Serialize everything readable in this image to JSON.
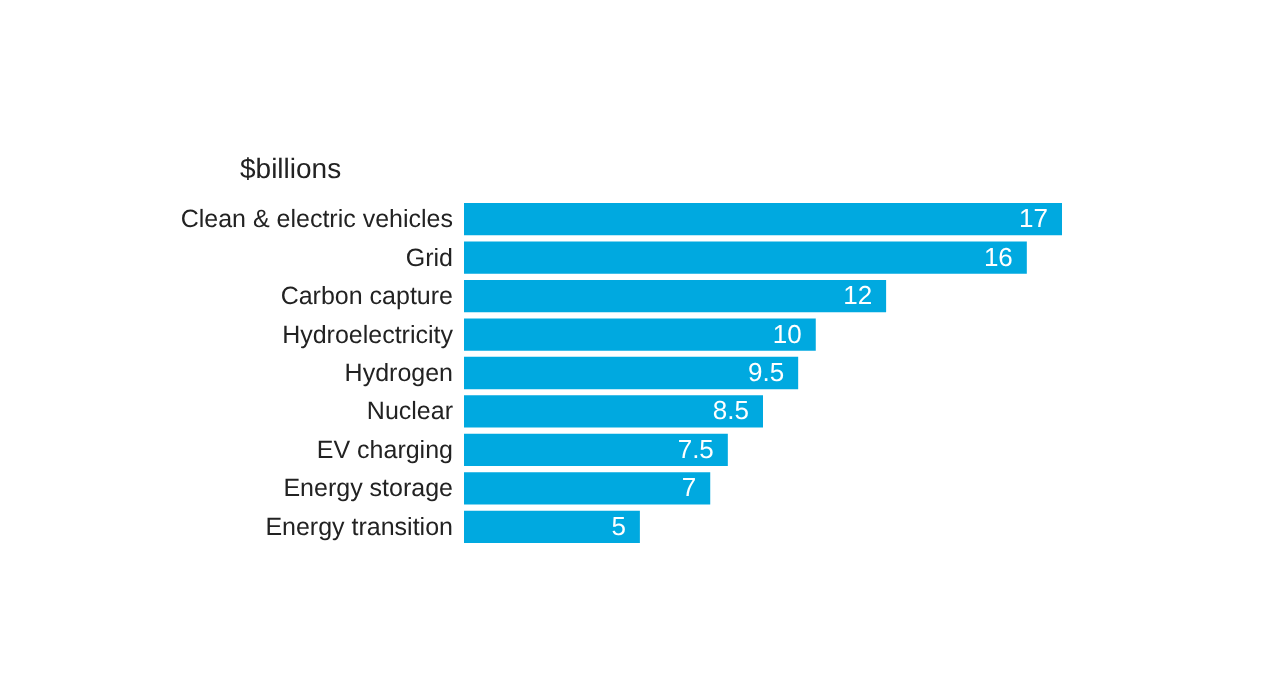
{
  "chart_data": {
    "type": "bar",
    "orientation": "horizontal",
    "title": "$billions",
    "categories": [
      "Clean & electric vehicles",
      "Grid",
      "Carbon capture",
      "Hydroelectricity",
      "Hydrogen",
      "Nuclear",
      "EV charging",
      "Energy storage",
      "Energy transition"
    ],
    "values": [
      17,
      16,
      12,
      10,
      9.5,
      8.5,
      7.5,
      7,
      5
    ],
    "color": "#00a9e0",
    "data_labels": true
  }
}
